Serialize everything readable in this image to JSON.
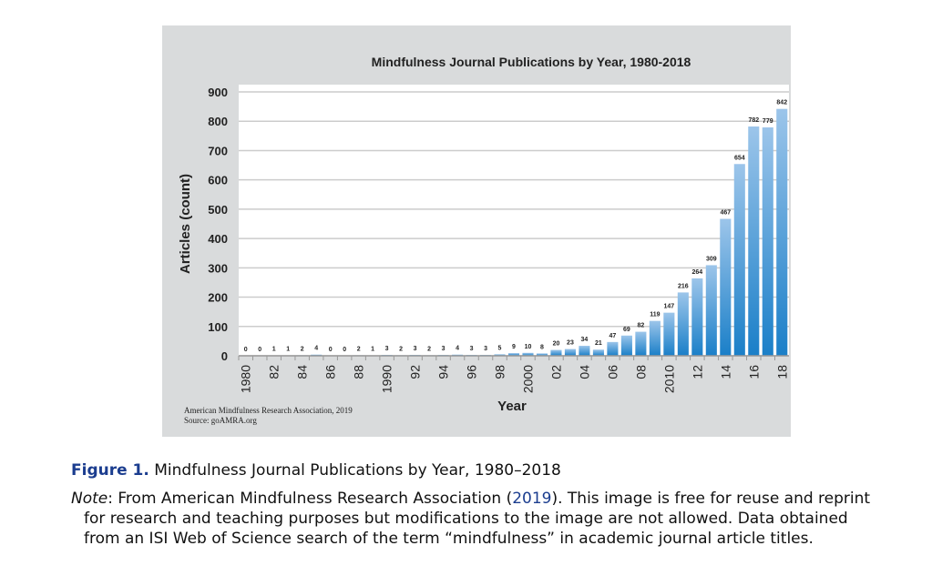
{
  "chart_data": {
    "type": "bar",
    "title": "Mindfulness Journal Publications by Year, 1980-2018",
    "xlabel": "Year",
    "ylabel": "Articles (count)",
    "ylim": [
      0,
      900
    ],
    "yticks": [
      0,
      100,
      200,
      300,
      400,
      500,
      600,
      700,
      800,
      900
    ],
    "grid": true,
    "years": [
      1980,
      1981,
      1982,
      1983,
      1984,
      1985,
      1986,
      1987,
      1988,
      1989,
      1990,
      1991,
      1992,
      1993,
      1994,
      1995,
      1996,
      1997,
      1998,
      1999,
      2000,
      2001,
      2002,
      2003,
      2004,
      2005,
      2006,
      2007,
      2008,
      2009,
      2010,
      2011,
      2012,
      2013,
      2014,
      2015,
      2016,
      2017,
      2018
    ],
    "tick_labels": {
      "1980": "1980",
      "1982": "82",
      "1984": "84",
      "1986": "86",
      "1988": "88",
      "1990": "1990",
      "1992": "92",
      "1994": "94",
      "1996": "96",
      "1998": "98",
      "2000": "2000",
      "2002": "02",
      "2004": "04",
      "2006": "06",
      "2008": "08",
      "2010": "2010",
      "2012": "12",
      "2014": "14",
      "2016": "16",
      "2018": "18"
    },
    "values": [
      0,
      0,
      1,
      1,
      2,
      4,
      0,
      0,
      2,
      1,
      3,
      2,
      3,
      2,
      3,
      4,
      3,
      3,
      5,
      9,
      10,
      8,
      20,
      23,
      34,
      21,
      47,
      69,
      82,
      119,
      147,
      216,
      264,
      309,
      467,
      654,
      782,
      779,
      842
    ],
    "bar_color_top": "#9cc5ea",
    "bar_color_bottom": "#1a7fc8",
    "source_lines": [
      "American Mindfulness Research Association, 2019",
      "Source: goAMRA.org"
    ]
  },
  "caption": {
    "figure_label": "Figure 1.",
    "figure_title": "Mindfulness Journal Publications by Year, 1980–2018",
    "note_label": "Note",
    "note_pre": ": From American Mindfulness Research Association (",
    "note_link": "2019",
    "note_post": "). This image is free for reuse and reprint",
    "note_line2": "for research and teaching purposes but modifications to the image are not allowed. Data obtained",
    "note_line3": "from an ISI Web of Science search of the term “mindfulness” in academic journal article titles."
  }
}
